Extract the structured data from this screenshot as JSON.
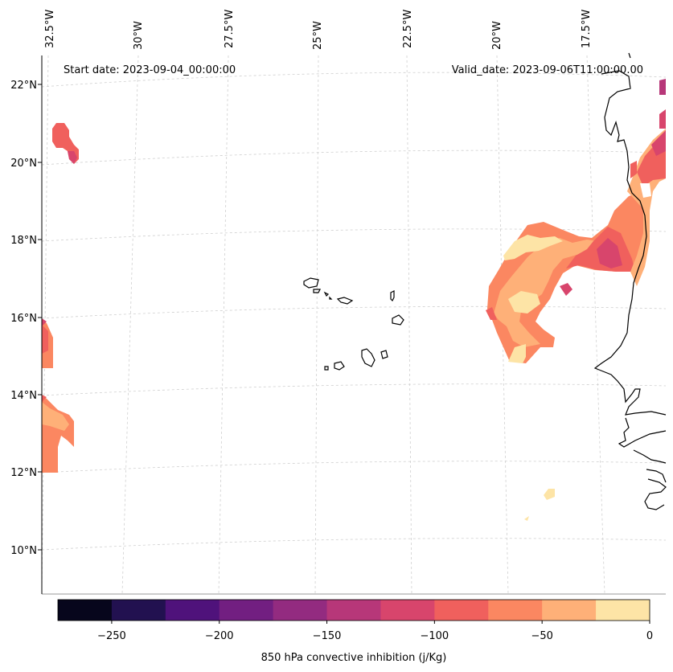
{
  "map": {
    "start_date": "Start date: 2023-09-04_00:00:00",
    "valid_date": "Valid_date: 2023-09-06T11:00:00.00",
    "lon_labels": [
      "32.5°W",
      "30°W",
      "27.5°W",
      "25°W",
      "22.5°W",
      "20°W",
      "17.5°W"
    ],
    "lat_labels": [
      "22°N",
      "20°N",
      "18°N",
      "16°N",
      "14°N",
      "12°N",
      "10°N"
    ]
  },
  "colorbar": {
    "label": "850 hPa convective inhibition (j/Kg)",
    "ticks": [
      "−250",
      "−200",
      "−150",
      "−100",
      "−50",
      "0"
    ],
    "levels": [
      -275,
      -250,
      -225,
      -200,
      -175,
      -150,
      -125,
      -100,
      -75,
      -50,
      -25,
      0
    ],
    "colors": [
      "#07061c",
      "#221150",
      "#4f127b",
      "#721f81",
      "#932b80",
      "#b73779",
      "#d8456c",
      "#f0605d",
      "#fb8761",
      "#feb078",
      "#fde4a6"
    ]
  }
}
